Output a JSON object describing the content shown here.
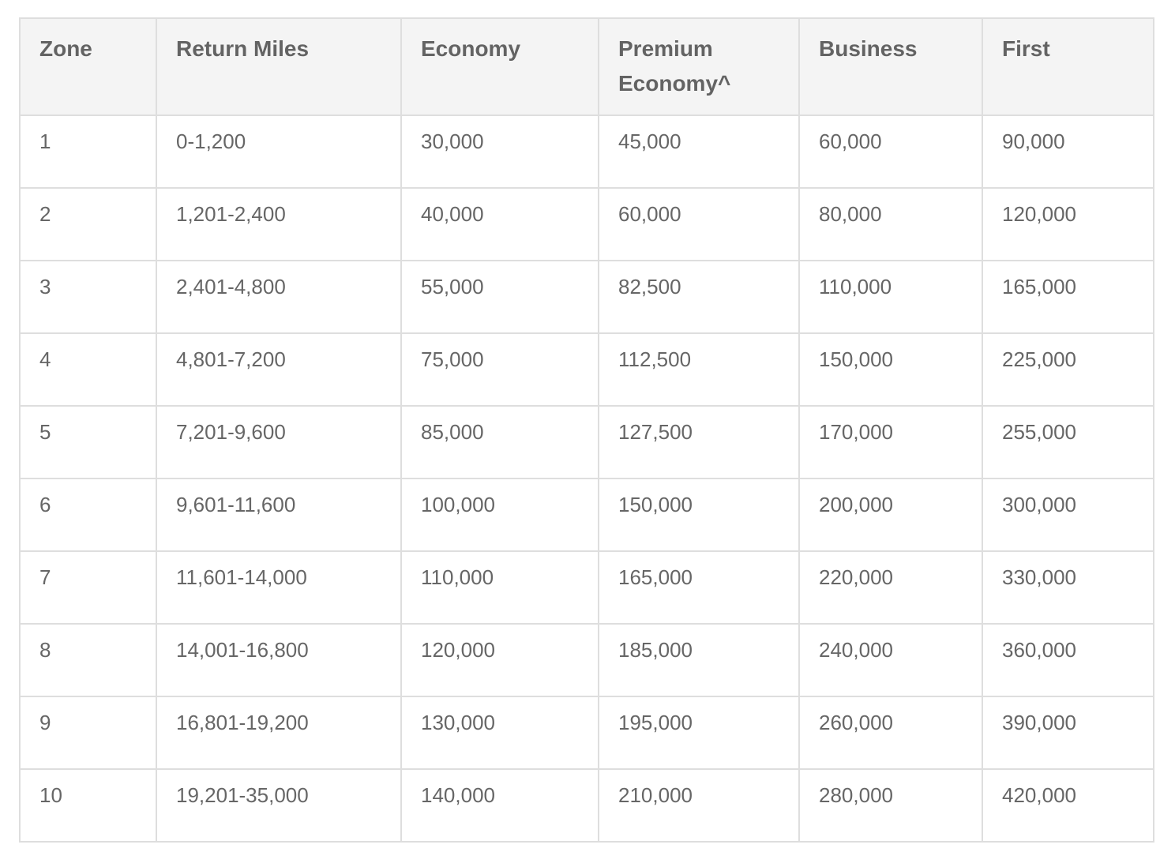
{
  "table": {
    "headers": [
      "Zone",
      "Return Miles",
      "Economy",
      "Premium Economy^",
      "Business",
      "First"
    ],
    "rows": [
      [
        "1",
        "0-1,200",
        "30,000",
        "45,000",
        "60,000",
        "90,000"
      ],
      [
        "2",
        "1,201-2,400",
        "40,000",
        "60,000",
        "80,000",
        "120,000"
      ],
      [
        "3",
        "2,401-4,800",
        "55,000",
        "82,500",
        "110,000",
        "165,000"
      ],
      [
        "4",
        "4,801-7,200",
        "75,000",
        "112,500",
        "150,000",
        "225,000"
      ],
      [
        "5",
        "7,201-9,600",
        "85,000",
        "127,500",
        "170,000",
        "255,000"
      ],
      [
        "6",
        "9,601-11,600",
        "100,000",
        "150,000",
        "200,000",
        "300,000"
      ],
      [
        "7",
        "11,601-14,000",
        "110,000",
        "165,000",
        "220,000",
        "330,000"
      ],
      [
        "8",
        "14,001-16,800",
        "120,000",
        "185,000",
        "240,000",
        "360,000"
      ],
      [
        "9",
        "16,801-19,200",
        "130,000",
        "195,000",
        "260,000",
        "390,000"
      ],
      [
        "10",
        "19,201-35,000",
        "140,000",
        "210,000",
        "280,000",
        "420,000"
      ]
    ]
  },
  "colors": {
    "header_bg": "#f4f4f4",
    "border": "#dedede",
    "text": "#666666"
  }
}
